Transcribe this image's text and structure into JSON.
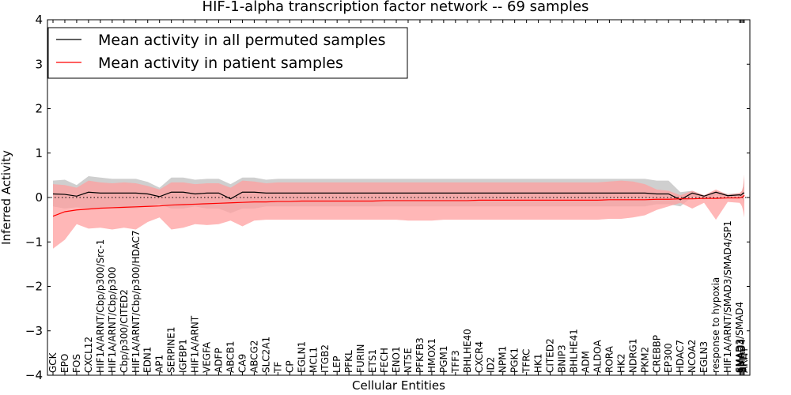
{
  "chart_data": {
    "type": "line",
    "title": "HIF-1-alpha transcription factor network -- 69 samples",
    "xlabel": "Cellular Entities",
    "ylabel": "Inferred Activity",
    "ylim": [
      -4,
      4
    ],
    "yticks": [
      -4,
      -3,
      -2,
      -1,
      0,
      1,
      2,
      3,
      4
    ],
    "reference_line": 0,
    "legend_position": "top-left",
    "colors": {
      "permuted_line": "#000000",
      "permuted_band": "#bfbfbf",
      "patient_line": "#ff0000",
      "patient_band": "#ff9f9f"
    },
    "categories": [
      "GCK",
      "EPO",
      "FOS",
      "CXCL12",
      "HIF1A/ARNT/Cbp/p300/Src-1",
      "HIF1A/ARNT/Cbp/p300",
      "Cbp/p300/CITED2",
      "HIF1A/ARNT/Cbp/p300/HDAC7",
      "EDN1",
      "AP1",
      "SERPINE1",
      "IGFBP1",
      "HIF1A/ARNT",
      "VEGFA",
      "ADFP",
      "ABCB1",
      "CA9",
      "ABCG2",
      "SLC2A1",
      "TF",
      "CP",
      "EGLN1",
      "MCL1",
      "ITGB2",
      "LEP",
      "PFKL",
      "FURIN",
      "ETS1",
      "FECH",
      "ENO1",
      "NT5E",
      "PFKFB3",
      "HMOX1",
      "PGM1",
      "TFF3",
      "BHLHE40",
      "CXCR4",
      "ID2",
      "NPM1",
      "PGK1",
      "TFRC",
      "HK1",
      "CITED2",
      "BNIP3",
      "BHLHE41",
      "ADM",
      "ALDOA",
      "RORA",
      "HK2",
      "NDRG1",
      "PKM2",
      "CREBBP",
      "EP300",
      "HDAC7",
      "NCOA2",
      "EGLN3",
      "response to hypoxia",
      "HIF1A/ARNT/SMAD3/SMAD4/SP1",
      "SMAD3/SMAD4",
      "SMAD3",
      "SMAD4",
      "SP1",
      "ARNT"
    ],
    "x_positions": [
      0,
      1,
      2,
      3,
      4,
      5,
      6,
      7,
      8,
      9,
      10,
      11,
      12,
      13,
      14,
      15,
      16,
      17,
      18,
      19,
      20,
      21,
      22,
      23,
      24,
      25,
      26,
      27,
      28,
      29,
      30,
      31,
      32,
      33,
      34,
      35,
      36,
      37,
      38,
      39,
      40,
      41,
      42,
      43,
      44,
      45,
      46,
      47,
      48,
      49,
      50,
      51,
      52,
      53,
      54,
      55,
      56,
      57,
      58,
      58.1,
      58.2,
      58.3,
      58.4
    ],
    "series": [
      {
        "name": "Mean activity in all permuted samples",
        "values": [
          0.08,
          0.07,
          0.03,
          0.12,
          0.1,
          0.1,
          0.1,
          0.1,
          0.08,
          0.02,
          0.12,
          0.12,
          0.08,
          0.1,
          0.1,
          -0.03,
          0.12,
          0.12,
          0.1,
          0.1,
          0.1,
          0.1,
          0.1,
          0.1,
          0.1,
          0.1,
          0.1,
          0.1,
          0.1,
          0.1,
          0.1,
          0.1,
          0.1,
          0.1,
          0.1,
          0.1,
          0.1,
          0.1,
          0.1,
          0.1,
          0.1,
          0.1,
          0.1,
          0.1,
          0.1,
          0.1,
          0.1,
          0.1,
          0.1,
          0.1,
          0.1,
          0.08,
          0.08,
          -0.05,
          0.1,
          0.03,
          0.12,
          0.04,
          0.06,
          0.05,
          0.07,
          0.1,
          0.1
        ],
        "band_upper": [
          0.38,
          0.4,
          0.28,
          0.48,
          0.45,
          0.42,
          0.42,
          0.42,
          0.35,
          0.22,
          0.45,
          0.45,
          0.4,
          0.42,
          0.42,
          0.3,
          0.45,
          0.45,
          0.4,
          0.42,
          0.42,
          0.42,
          0.42,
          0.42,
          0.42,
          0.42,
          0.42,
          0.42,
          0.42,
          0.42,
          0.42,
          0.42,
          0.42,
          0.42,
          0.42,
          0.42,
          0.42,
          0.42,
          0.42,
          0.42,
          0.42,
          0.42,
          0.42,
          0.42,
          0.42,
          0.42,
          0.42,
          0.42,
          0.42,
          0.42,
          0.42,
          0.38,
          0.38,
          0.12,
          0.15,
          0.05,
          0.15,
          0.08,
          0.1,
          0.12,
          0.15,
          0.25,
          0.45
        ],
        "band_lower": [
          -0.2,
          -0.25,
          -0.22,
          -0.25,
          -0.25,
          -0.25,
          -0.25,
          -0.25,
          -0.2,
          -0.15,
          -0.25,
          -0.25,
          -0.2,
          -0.25,
          -0.25,
          -0.35,
          -0.25,
          -0.25,
          -0.2,
          -0.2,
          -0.2,
          -0.2,
          -0.2,
          -0.2,
          -0.2,
          -0.2,
          -0.2,
          -0.2,
          -0.2,
          -0.2,
          -0.2,
          -0.2,
          -0.2,
          -0.2,
          -0.2,
          -0.2,
          -0.2,
          -0.2,
          -0.2,
          -0.2,
          -0.2,
          -0.2,
          -0.2,
          -0.2,
          -0.2,
          -0.2,
          -0.2,
          -0.2,
          -0.2,
          -0.2,
          -0.2,
          -0.15,
          -0.15,
          -0.2,
          0.02,
          -0.05,
          0.05,
          0.0,
          0.02,
          0.0,
          0.0,
          -0.05,
          -0.15
        ]
      },
      {
        "name": "Mean activity in patient samples",
        "values": [
          -0.42,
          -0.32,
          -0.28,
          -0.26,
          -0.24,
          -0.23,
          -0.22,
          -0.21,
          -0.2,
          -0.19,
          -0.17,
          -0.16,
          -0.15,
          -0.14,
          -0.13,
          -0.12,
          -0.11,
          -0.1,
          -0.1,
          -0.09,
          -0.09,
          -0.08,
          -0.08,
          -0.08,
          -0.08,
          -0.08,
          -0.08,
          -0.08,
          -0.07,
          -0.07,
          -0.07,
          -0.07,
          -0.07,
          -0.07,
          -0.07,
          -0.07,
          -0.06,
          -0.06,
          -0.06,
          -0.06,
          -0.06,
          -0.06,
          -0.06,
          -0.06,
          -0.06,
          -0.06,
          -0.06,
          -0.05,
          -0.05,
          -0.05,
          -0.05,
          -0.04,
          -0.04,
          -0.03,
          -0.03,
          -0.02,
          -0.02,
          -0.01,
          -0.01,
          0.0,
          0.01,
          0.02,
          0.05
        ],
        "band_upper": [
          0.3,
          0.28,
          0.22,
          0.38,
          0.34,
          0.32,
          0.34,
          0.32,
          0.26,
          0.18,
          0.34,
          0.34,
          0.3,
          0.32,
          0.32,
          0.22,
          0.38,
          0.36,
          0.32,
          0.34,
          0.34,
          0.34,
          0.34,
          0.34,
          0.34,
          0.34,
          0.34,
          0.34,
          0.34,
          0.34,
          0.34,
          0.34,
          0.34,
          0.34,
          0.34,
          0.34,
          0.34,
          0.34,
          0.34,
          0.34,
          0.34,
          0.34,
          0.34,
          0.34,
          0.34,
          0.34,
          0.34,
          0.36,
          0.38,
          0.36,
          0.3,
          0.18,
          0.15,
          0.05,
          0.15,
          0.05,
          0.18,
          0.06,
          0.1,
          0.12,
          0.15,
          0.25,
          0.52
        ],
        "band_lower": [
          -1.15,
          -0.95,
          -0.6,
          -0.7,
          -0.68,
          -0.72,
          -0.68,
          -0.72,
          -0.55,
          -0.45,
          -0.72,
          -0.68,
          -0.6,
          -0.62,
          -0.6,
          -0.52,
          -0.65,
          -0.52,
          -0.5,
          -0.5,
          -0.5,
          -0.5,
          -0.5,
          -0.5,
          -0.5,
          -0.5,
          -0.5,
          -0.5,
          -0.5,
          -0.5,
          -0.52,
          -0.52,
          -0.52,
          -0.5,
          -0.5,
          -0.5,
          -0.5,
          -0.5,
          -0.5,
          -0.5,
          -0.5,
          -0.5,
          -0.5,
          -0.5,
          -0.5,
          -0.5,
          -0.5,
          -0.48,
          -0.48,
          -0.45,
          -0.4,
          -0.28,
          -0.2,
          -0.12,
          -0.25,
          -0.12,
          -0.5,
          -0.1,
          -0.12,
          -0.15,
          -0.2,
          -0.3,
          -0.45
        ]
      }
    ]
  }
}
